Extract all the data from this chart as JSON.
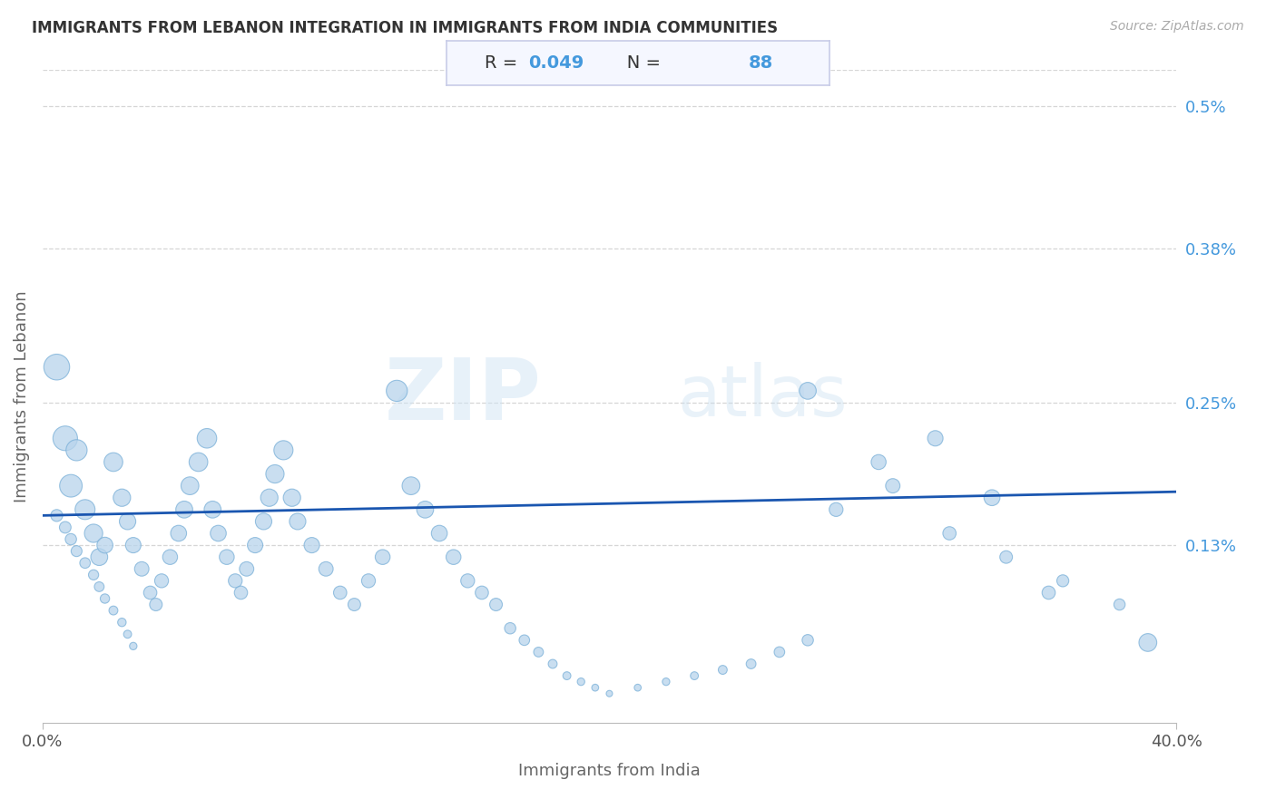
{
  "title": "IMMIGRANTS FROM LEBANON INTEGRATION IN IMMIGRANTS FROM INDIA COMMUNITIES",
  "source": "Source: ZipAtlas.com",
  "xlabel": "Immigrants from India",
  "ylabel": "Immigrants from Lebanon",
  "xlim": [
    0.0,
    0.4
  ],
  "ylim": [
    -0.0002,
    0.0053
  ],
  "xtick_labels": [
    "0.0%",
    "40.0%"
  ],
  "xtick_positions": [
    0.0,
    0.4
  ],
  "ytick_labels": [
    "0.5%",
    "0.38%",
    "0.25%",
    "0.13%"
  ],
  "ytick_positions": [
    0.005,
    0.0038,
    0.0025,
    0.0013
  ],
  "R_value": "0.049",
  "N_value": "88",
  "scatter_color": "#b8d4ec",
  "scatter_edge_color": "#7ab0d8",
  "line_color": "#1a56b0",
  "title_color": "#333333",
  "label_color": "#666666",
  "right_label_color": "#4499dd",
  "watermark_zip": "ZIP",
  "watermark_atlas": "atlas",
  "background_color": "#ffffff",
  "grid_color": "#cccccc",
  "annotation_box_color": "#f5f7ff",
  "annotation_border_color": "#c8cce8",
  "trend_x0": 0.0,
  "trend_y0": 0.00155,
  "trend_x1": 0.4,
  "trend_y1": 0.00175,
  "x_data": [
    0.005,
    0.008,
    0.01,
    0.012,
    0.015,
    0.018,
    0.02,
    0.022,
    0.025,
    0.028,
    0.03,
    0.032,
    0.035,
    0.038,
    0.04,
    0.042,
    0.045,
    0.048,
    0.05,
    0.052,
    0.055,
    0.058,
    0.06,
    0.062,
    0.065,
    0.068,
    0.07,
    0.072,
    0.075,
    0.078,
    0.08,
    0.082,
    0.085,
    0.088,
    0.09,
    0.095,
    0.1,
    0.105,
    0.11,
    0.115,
    0.12,
    0.125,
    0.13,
    0.135,
    0.14,
    0.145,
    0.15,
    0.155,
    0.16,
    0.165,
    0.17,
    0.175,
    0.18,
    0.185,
    0.19,
    0.195,
    0.2,
    0.21,
    0.22,
    0.23,
    0.24,
    0.25,
    0.26,
    0.27,
    0.005,
    0.008,
    0.01,
    0.012,
    0.015,
    0.018,
    0.02,
    0.022,
    0.025,
    0.028,
    0.03,
    0.032,
    0.28,
    0.3,
    0.32,
    0.34,
    0.36,
    0.38,
    0.295,
    0.315,
    0.27,
    0.39,
    0.335,
    0.355
  ],
  "y_data": [
    0.0028,
    0.0022,
    0.0018,
    0.0021,
    0.0016,
    0.0014,
    0.0012,
    0.0013,
    0.002,
    0.0017,
    0.0015,
    0.0013,
    0.0011,
    0.0009,
    0.0008,
    0.001,
    0.0012,
    0.0014,
    0.0016,
    0.0018,
    0.002,
    0.0022,
    0.0016,
    0.0014,
    0.0012,
    0.001,
    0.0009,
    0.0011,
    0.0013,
    0.0015,
    0.0017,
    0.0019,
    0.0021,
    0.0017,
    0.0015,
    0.0013,
    0.0011,
    0.0009,
    0.0008,
    0.001,
    0.0012,
    0.0026,
    0.0018,
    0.0016,
    0.0014,
    0.0012,
    0.001,
    0.0009,
    0.0008,
    0.0006,
    0.0005,
    0.0004,
    0.0003,
    0.0002,
    0.00015,
    0.0001,
    5e-05,
    0.0001,
    0.00015,
    0.0002,
    0.00025,
    0.0003,
    0.0004,
    0.0005,
    0.00155,
    0.00145,
    0.00135,
    0.00125,
    0.00115,
    0.00105,
    0.00095,
    0.00085,
    0.00075,
    0.00065,
    0.00055,
    0.00045,
    0.0016,
    0.0018,
    0.0014,
    0.0012,
    0.001,
    0.0008,
    0.002,
    0.0022,
    0.0026,
    0.00048,
    0.0017,
    0.0009
  ],
  "scatter_sizes": [
    420,
    380,
    320,
    280,
    250,
    210,
    180,
    160,
    220,
    190,
    170,
    150,
    130,
    110,
    100,
    120,
    140,
    160,
    180,
    200,
    220,
    240,
    180,
    160,
    140,
    120,
    110,
    130,
    150,
    170,
    190,
    210,
    230,
    190,
    170,
    150,
    130,
    110,
    100,
    120,
    140,
    280,
    200,
    180,
    160,
    140,
    120,
    110,
    100,
    80,
    70,
    60,
    50,
    40,
    35,
    30,
    25,
    30,
    35,
    40,
    50,
    60,
    70,
    80,
    90,
    85,
    80,
    75,
    70,
    65,
    60,
    55,
    50,
    45,
    40,
    35,
    120,
    130,
    110,
    100,
    90,
    80,
    140,
    150,
    180,
    200,
    160,
    110
  ]
}
